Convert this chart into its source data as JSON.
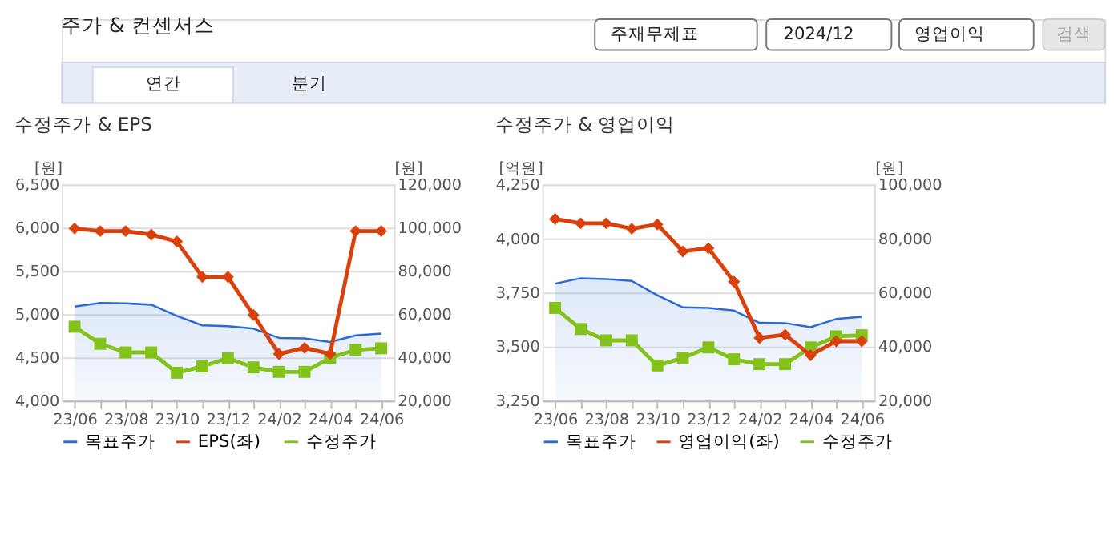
{
  "chart_data": [
    {
      "type": "other",
      "title": "주가 & 컨센서스",
      "annotations": [
        "주재무제표",
        "2024/12",
        "영업이익",
        "검색",
        "연간",
        "분기"
      ]
    },
    {
      "type": "line",
      "title": "수정주가 & EPS",
      "ylabel": "[원]",
      "y2label": "[원]",
      "categories": [
        "23/06",
        null,
        "23/08",
        null,
        "23/10",
        null,
        "23/12",
        null,
        "24/02",
        null,
        "24/04",
        null,
        "24/06"
      ],
      "ylim": [
        4000,
        6500
      ],
      "yticks": [
        {
          "value": 4000,
          "label": "4,000"
        },
        {
          "value": 4500,
          "label": "4,500"
        },
        {
          "value": 5000,
          "label": "5,000"
        },
        {
          "value": 5500,
          "label": "5,500"
        },
        {
          "value": 6000,
          "label": "6,000"
        },
        {
          "value": 6500,
          "label": "6,500"
        }
      ],
      "y2lim": [
        20000,
        120000
      ],
      "y2ticks": [
        {
          "value": 20000,
          "label": "20,000"
        },
        {
          "value": 40000,
          "label": "40,000"
        },
        {
          "value": 60000,
          "label": "60,000"
        },
        {
          "value": 80000,
          "label": "80,000"
        },
        {
          "value": 100000,
          "label": "100,000"
        },
        {
          "value": 120000,
          "label": "120,000"
        }
      ],
      "grid": "y",
      "legend": "bottom",
      "series": [
        {
          "name": "목표주가",
          "type": "area",
          "axis": "y2",
          "color": "#2a6ad6",
          "values": [
            63500,
            65200,
            65000,
            64400,
            59200,
            54800,
            54400,
            53300,
            49000,
            48800,
            47100,
            50200,
            51000
          ]
        },
        {
          "name": "EPS(좌)",
          "type": "line",
          "marker": "diamond",
          "color": "#d9400b",
          "values": [
            5990,
            5960,
            5960,
            5920,
            5840,
            5430,
            5430,
            4990,
            4540,
            4610,
            4540,
            5960,
            5960
          ]
        },
        {
          "name": "수정주가",
          "type": "line",
          "marker": "square",
          "axis": "y2",
          "color": "#82c21a",
          "values": [
            54200,
            46300,
            42300,
            42300,
            32900,
            35800,
            39600,
            35400,
            33300,
            33300,
            39800,
            43500,
            44200
          ]
        }
      ]
    },
    {
      "type": "line",
      "title": "수정주가 & 영업이익",
      "ylabel": "[억원]",
      "y2label": "[원]",
      "categories": [
        "23/06",
        null,
        "23/08",
        null,
        "23/10",
        null,
        "23/12",
        null,
        "24/02",
        null,
        "24/04",
        null,
        "24/06"
      ],
      "ylim": [
        3250,
        4250
      ],
      "yticks": [
        {
          "value": 3250,
          "label": "3,250"
        },
        {
          "value": 3500,
          "label": "3,500"
        },
        {
          "value": 3750,
          "label": "3,750"
        },
        {
          "value": 4000,
          "label": "4,000"
        },
        {
          "value": 4250,
          "label": "4,250"
        }
      ],
      "y2lim": [
        20000,
        100000
      ],
      "y2ticks": [
        {
          "value": 20000,
          "label": "20,000"
        },
        {
          "value": 40000,
          "label": "40,000"
        },
        {
          "value": 60000,
          "label": "60,000"
        },
        {
          "value": 80000,
          "label": "80,000"
        },
        {
          "value": 100000,
          "label": "100,000"
        }
      ],
      "grid": "y",
      "legend": "bottom",
      "series": [
        {
          "name": "목표주가",
          "type": "area",
          "axis": "y2",
          "color": "#2a6ad6",
          "values": [
            63300,
            65300,
            65000,
            64300,
            59000,
            54500,
            54300,
            53300,
            48800,
            48700,
            47200,
            50200,
            51000
          ]
        },
        {
          "name": "영업이익(좌)",
          "type": "line",
          "marker": "diamond",
          "color": "#d9400b",
          "values": [
            4090,
            4070,
            4070,
            4045,
            4065,
            3940,
            3955,
            3800,
            3540,
            3555,
            3460,
            3525,
            3525
          ]
        },
        {
          "name": "수정주가",
          "type": "line",
          "marker": "square",
          "axis": "y2",
          "color": "#82c21a",
          "values": [
            54300,
            46500,
            42300,
            42300,
            33000,
            35800,
            39700,
            35300,
            33500,
            33500,
            39700,
            43800,
            44200
          ]
        }
      ]
    }
  ]
}
